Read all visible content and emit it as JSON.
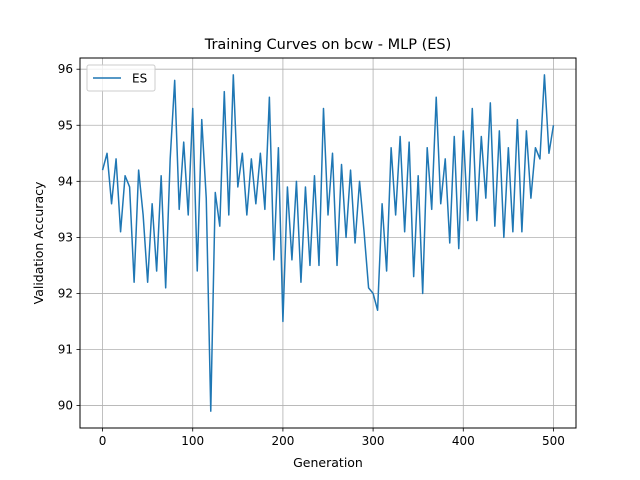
{
  "chart_data": {
    "type": "line",
    "title": "Training Curves on bcw - MLP (ES)",
    "xlabel": "Generation",
    "ylabel": "Validation Accuracy",
    "xlim": [
      -25,
      525
    ],
    "ylim": [
      89.6,
      96.2
    ],
    "xticks": [
      0,
      100,
      200,
      300,
      400,
      500
    ],
    "yticks": [
      90,
      91,
      92,
      93,
      94,
      95,
      96
    ],
    "grid": true,
    "legend": {
      "position": "top-left"
    },
    "colors": {
      "series": "#1f77b4",
      "grid": "#b0b0b0",
      "axes": "#000000"
    },
    "series": [
      {
        "name": "ES",
        "x": [
          0,
          5,
          10,
          15,
          20,
          25,
          30,
          35,
          40,
          45,
          50,
          55,
          60,
          65,
          70,
          75,
          80,
          85,
          90,
          95,
          100,
          105,
          110,
          115,
          120,
          125,
          130,
          135,
          140,
          145,
          150,
          155,
          160,
          165,
          170,
          175,
          180,
          185,
          190,
          195,
          200,
          205,
          210,
          215,
          220,
          225,
          230,
          235,
          240,
          245,
          250,
          255,
          260,
          265,
          270,
          275,
          280,
          285,
          290,
          295,
          300,
          305,
          310,
          315,
          320,
          325,
          330,
          335,
          340,
          345,
          350,
          355,
          360,
          365,
          370,
          375,
          380,
          385,
          390,
          395,
          400,
          405,
          410,
          415,
          420,
          425,
          430,
          435,
          440,
          445,
          450,
          455,
          460,
          465,
          470,
          475,
          480,
          485,
          490,
          495,
          500
        ],
        "y": [
          94.2,
          94.5,
          93.6,
          94.4,
          93.1,
          94.1,
          93.9,
          92.2,
          94.2,
          93.4,
          92.2,
          93.6,
          92.4,
          94.1,
          92.1,
          94.4,
          95.8,
          93.5,
          94.7,
          93.4,
          95.3,
          92.4,
          95.1,
          93.7,
          89.9,
          93.8,
          93.2,
          95.6,
          93.4,
          95.9,
          93.9,
          94.5,
          93.4,
          94.4,
          93.6,
          94.5,
          93.5,
          95.5,
          92.6,
          94.6,
          91.5,
          93.9,
          92.6,
          94.0,
          92.2,
          93.9,
          92.5,
          94.1,
          92.5,
          95.3,
          93.4,
          94.5,
          92.5,
          94.3,
          93.0,
          94.2,
          92.9,
          94.0,
          93.1,
          92.1,
          92.0,
          91.7,
          93.6,
          92.4,
          94.6,
          93.4,
          94.8,
          93.1,
          94.7,
          92.3,
          94.1,
          92.0,
          94.6,
          93.5,
          95.5,
          93.6,
          94.4,
          92.9,
          94.8,
          92.8,
          94.9,
          93.3,
          95.3,
          93.3,
          94.8,
          93.7,
          95.4,
          93.2,
          94.9,
          93.0,
          94.6,
          93.1,
          95.1,
          93.1,
          94.9,
          93.7,
          94.6,
          94.4,
          95.9,
          94.5,
          95.0
        ]
      }
    ]
  }
}
